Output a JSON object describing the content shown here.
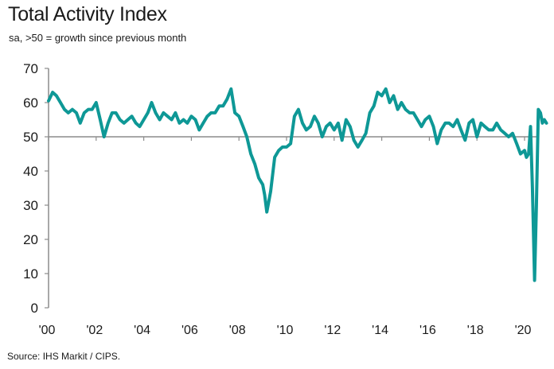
{
  "chart_data": {
    "type": "line",
    "title": "Total Activity Index",
    "subtitle": "sa, >50 = growth since previous month",
    "source": "Source: IHS Markit / CIPS.",
    "xlabel": "",
    "ylabel": "",
    "ylim": [
      0,
      70
    ],
    "xlim": [
      2000.0,
      2020.9
    ],
    "yticks": [
      0,
      10,
      20,
      30,
      40,
      50,
      60,
      70
    ],
    "xtick_values": [
      2000,
      2002,
      2004,
      2006,
      2008,
      2010,
      2012,
      2014,
      2016,
      2018,
      2020
    ],
    "xtick_labels": [
      "'00",
      "'02",
      "'04",
      "'06",
      "'08",
      "'10",
      "'12",
      "'14",
      "'16",
      "'18",
      "'20"
    ],
    "reference_line": 50,
    "grid": false,
    "line_color": "#0e9896",
    "reference_color": "#8c8c8c",
    "series": [
      {
        "name": "Total Activity Index",
        "x": [
          2000.0,
          2000.17,
          2000.33,
          2000.5,
          2000.67,
          2000.83,
          2001.0,
          2001.17,
          2001.33,
          2001.5,
          2001.67,
          2001.83,
          2002.0,
          2002.17,
          2002.33,
          2002.5,
          2002.67,
          2002.83,
          2003.0,
          2003.17,
          2003.33,
          2003.5,
          2003.67,
          2003.83,
          2004.0,
          2004.17,
          2004.33,
          2004.5,
          2004.67,
          2004.83,
          2005.0,
          2005.17,
          2005.33,
          2005.5,
          2005.67,
          2005.83,
          2006.0,
          2006.17,
          2006.33,
          2006.5,
          2006.67,
          2006.83,
          2007.0,
          2007.17,
          2007.33,
          2007.5,
          2007.67,
          2007.83,
          2008.0,
          2008.17,
          2008.33,
          2008.5,
          2008.67,
          2008.83,
          2009.0,
          2009.08,
          2009.17,
          2009.33,
          2009.5,
          2009.67,
          2009.83,
          2010.0,
          2010.17,
          2010.33,
          2010.5,
          2010.67,
          2010.83,
          2011.0,
          2011.17,
          2011.33,
          2011.5,
          2011.67,
          2011.83,
          2012.0,
          2012.17,
          2012.33,
          2012.5,
          2012.67,
          2012.83,
          2013.0,
          2013.17,
          2013.33,
          2013.5,
          2013.67,
          2013.83,
          2014.0,
          2014.17,
          2014.33,
          2014.5,
          2014.67,
          2014.83,
          2015.0,
          2015.17,
          2015.33,
          2015.5,
          2015.67,
          2015.83,
          2016.0,
          2016.17,
          2016.33,
          2016.5,
          2016.67,
          2016.83,
          2017.0,
          2017.17,
          2017.33,
          2017.5,
          2017.67,
          2017.83,
          2018.0,
          2018.17,
          2018.33,
          2018.5,
          2018.67,
          2018.83,
          2019.0,
          2019.17,
          2019.33,
          2019.5,
          2019.67,
          2019.83,
          2020.0,
          2020.08,
          2020.17,
          2020.25,
          2020.33,
          2020.42,
          2020.5,
          2020.58,
          2020.67,
          2020.75,
          2020.83,
          2020.92
        ],
        "values": [
          60.5,
          63,
          62,
          60,
          58,
          57,
          58,
          57,
          54,
          57,
          58,
          58,
          60,
          55,
          50,
          54,
          57,
          57,
          55,
          54,
          55,
          56,
          54,
          53,
          55,
          57,
          60,
          57,
          55,
          57,
          56,
          55,
          57,
          54,
          55,
          54,
          56,
          55,
          52,
          54,
          56,
          57,
          57,
          59,
          59,
          61,
          64,
          57,
          56,
          53,
          50,
          45,
          42,
          38,
          36,
          33,
          28,
          34,
          44,
          46,
          47,
          47,
          48,
          56,
          58,
          54,
          52,
          53,
          56,
          54,
          50,
          53,
          54,
          52,
          54,
          49,
          55,
          53,
          49,
          47,
          49,
          51,
          57,
          59,
          63,
          62,
          64,
          60,
          62,
          58,
          60,
          58,
          57,
          57,
          55,
          53,
          55,
          56,
          53,
          48,
          52,
          54,
          54,
          53,
          55,
          52,
          49,
          54,
          55,
          50,
          54,
          53,
          52,
          52,
          54,
          52,
          51,
          50,
          51,
          48,
          45,
          46,
          44,
          45,
          53,
          35,
          8,
          30,
          58,
          57,
          54,
          55,
          54
        ]
      }
    ]
  }
}
